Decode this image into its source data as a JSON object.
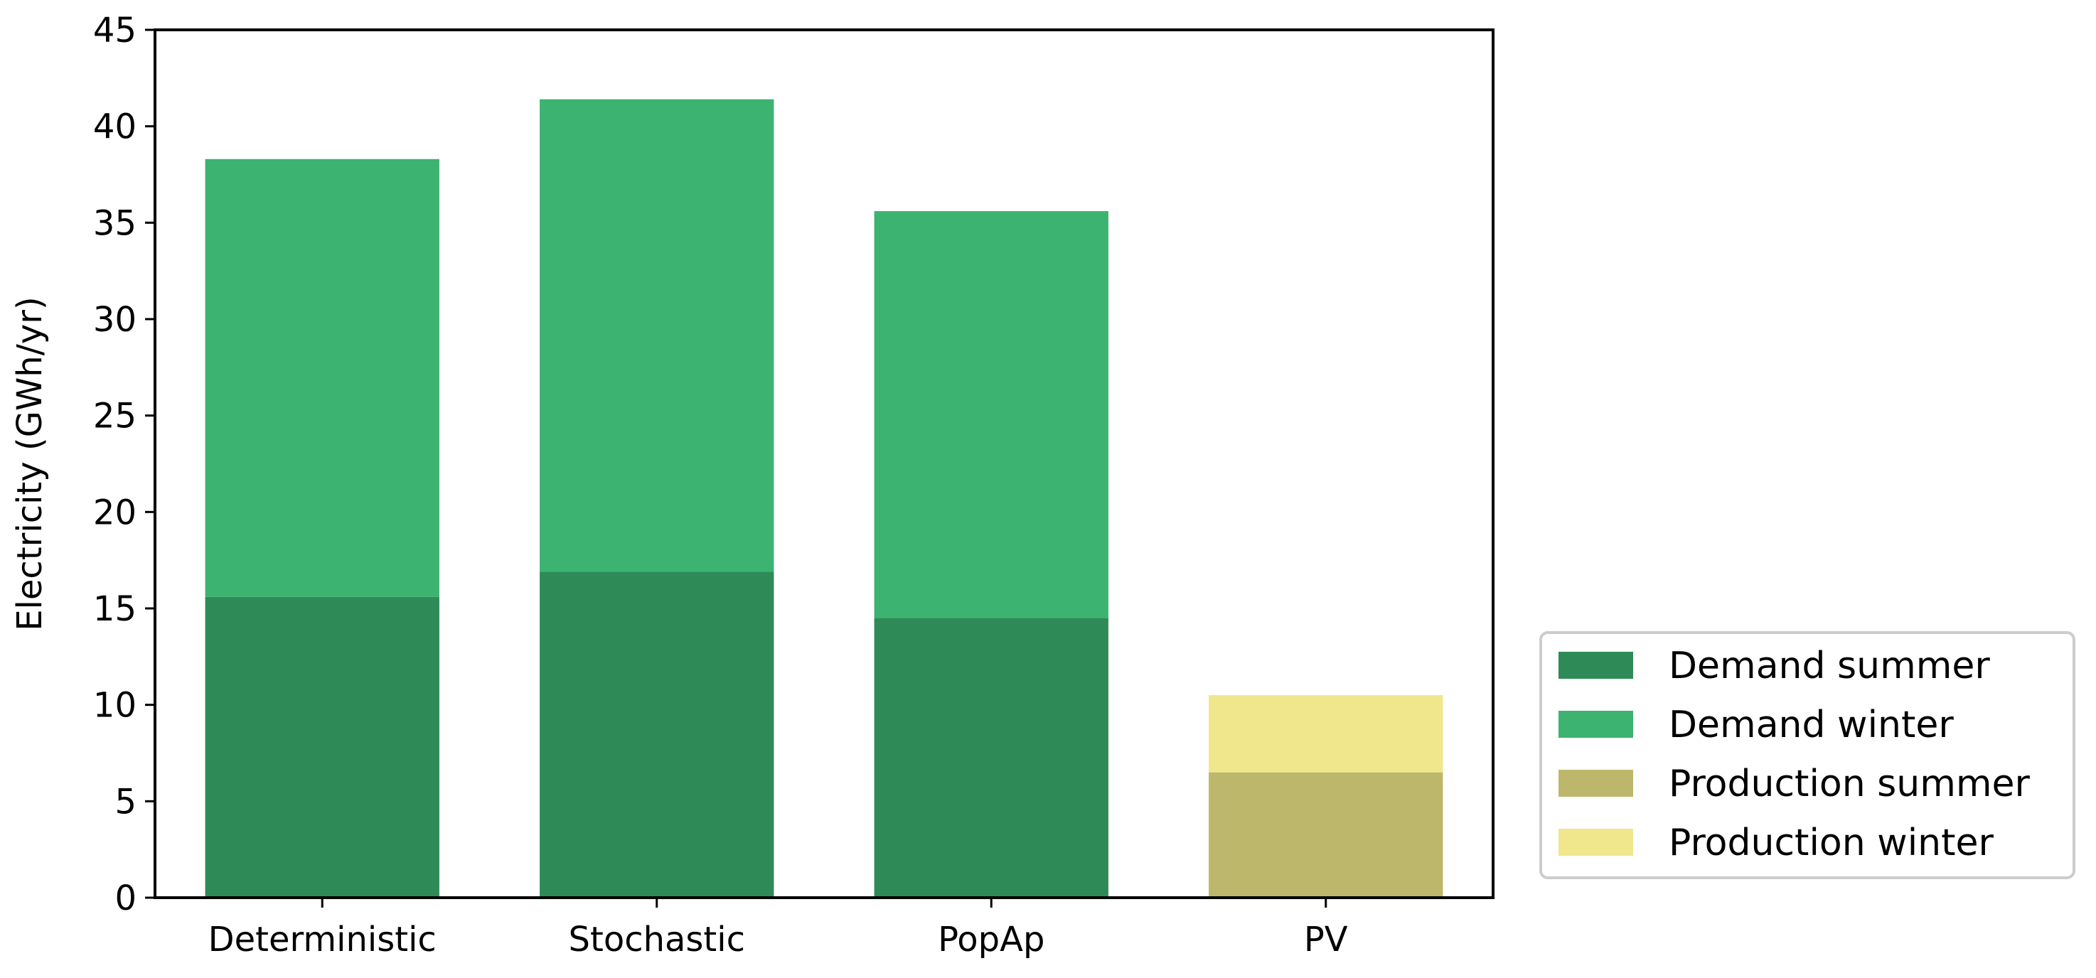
{
  "chart_data": {
    "type": "bar",
    "stacked": true,
    "title": "",
    "xlabel": "",
    "ylabel": "Electricity (GWh/yr)",
    "ylim": [
      0,
      45
    ],
    "yticks": [
      0,
      5,
      10,
      15,
      20,
      25,
      30,
      35,
      40,
      45
    ],
    "categories": [
      "Deterministic",
      "Stochastic",
      "PopAp",
      "PV"
    ],
    "series": [
      {
        "name": "Demand summer",
        "color": "#2e8b57",
        "values": [
          15.6,
          16.9,
          14.5,
          0
        ]
      },
      {
        "name": "Demand winter",
        "color": "#3cb371",
        "values": [
          22.7,
          24.5,
          21.1,
          0
        ]
      },
      {
        "name": "Production summer",
        "color": "#bdb76b",
        "values": [
          0,
          0,
          0,
          6.5
        ]
      },
      {
        "name": "Production winter",
        "color": "#f0e68c",
        "values": [
          0,
          0,
          0,
          4.0
        ]
      }
    ],
    "legend_position": "lower-right-outside",
    "grid": false
  }
}
